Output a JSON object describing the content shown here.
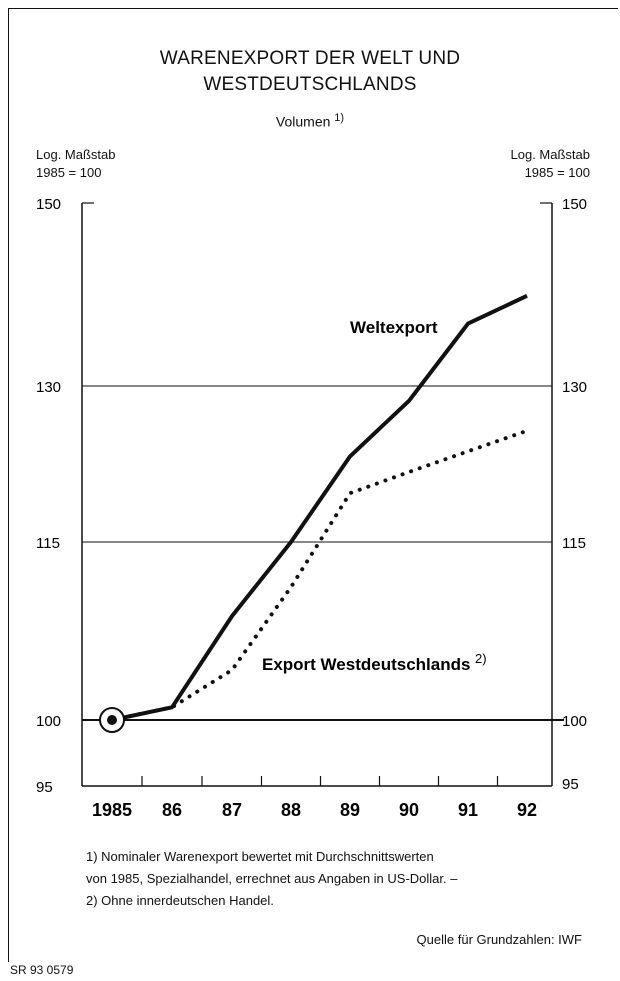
{
  "title_line1": "WARENEXPORT DER WELT UND",
  "title_line2": "WESTDEUTSCHLANDS",
  "subtitle": "Volumen",
  "subtitle_note": "1)",
  "left_axis_head": [
    "Log. Maßstab",
    "1985 = 100"
  ],
  "right_axis_head": [
    "Log. Maßstab",
    "1985 = 100"
  ],
  "footnotes": [
    "1) Nominaler Warenexport bewertet mit Durchschnittswerten",
    "von 1985, Spezialhandel, errechnet aus Angaben in US-Dollar. –",
    "2) Ohne innerdeutschen Handel."
  ],
  "source": "Quelle für Grundzahlen: IWF",
  "code": "SR 93 0579",
  "chart_data": {
    "type": "line",
    "x": [
      "1985",
      "86",
      "87",
      "88",
      "89",
      "90",
      "91",
      "92"
    ],
    "yticks": [
      95,
      100,
      115,
      130,
      150
    ],
    "ylim": [
      95,
      150
    ],
    "yscale": "log",
    "series": [
      {
        "name": "Weltexport",
        "style": "solid",
        "values": [
          100,
          101,
          108.5,
          115,
          123,
          128.5,
          136.5,
          139.5
        ]
      },
      {
        "name": "Export Westdeutschlands",
        "note": "2)",
        "style": "dotted",
        "values": [
          100,
          101,
          104,
          111,
          119.5,
          121.5,
          123.5,
          125.5
        ]
      }
    ],
    "marker_label": "",
    "colors": {
      "line": "#111111",
      "grid": "#111111"
    }
  }
}
